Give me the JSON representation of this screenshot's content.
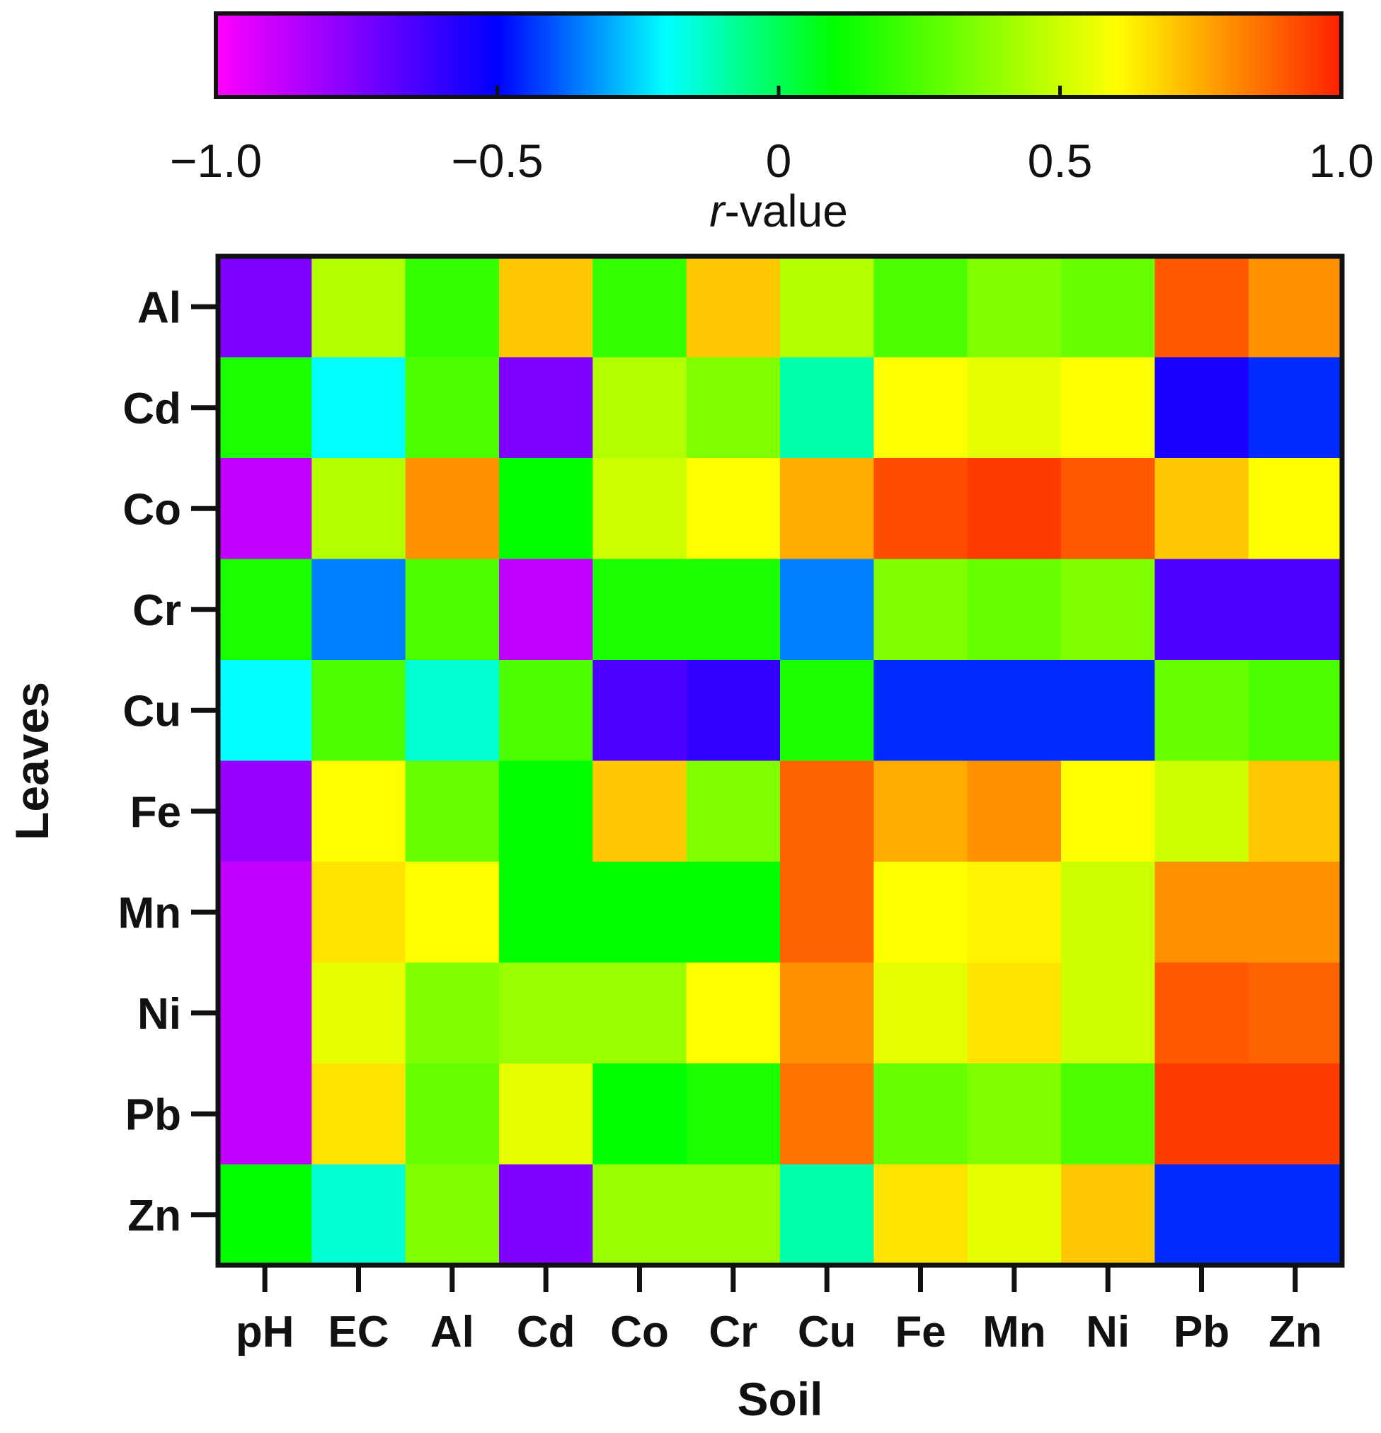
{
  "chart_data": {
    "type": "heatmap",
    "title": "",
    "xlabel": "Soil",
    "ylabel": "Leaves",
    "x_categories": [
      "pH",
      "EC",
      "Al",
      "Cd",
      "Co",
      "Cr",
      "Cu",
      "Fe",
      "Mn",
      "Ni",
      "Pb",
      "Zn"
    ],
    "y_categories": [
      "Al",
      "Cd",
      "Co",
      "Cr",
      "Cu",
      "Fe",
      "Mn",
      "Ni",
      "Pb",
      "Zn"
    ],
    "values": [
      [
        -0.75,
        0.45,
        0.2,
        0.7,
        0.2,
        0.7,
        0.45,
        0.25,
        0.35,
        0.3,
        0.9,
        0.8
      ],
      [
        0.15,
        -0.2,
        0.25,
        -0.75,
        0.45,
        0.35,
        -0.1,
        0.6,
        0.55,
        0.6,
        -0.55,
        -0.45
      ],
      [
        -0.88,
        0.45,
        0.8,
        0.1,
        0.5,
        0.6,
        0.75,
        0.92,
        0.95,
        0.9,
        0.7,
        0.6
      ],
      [
        0.15,
        -0.35,
        0.25,
        -0.88,
        0.15,
        0.15,
        -0.35,
        0.35,
        0.3,
        0.35,
        -0.65,
        -0.65
      ],
      [
        -0.2,
        0.25,
        -0.15,
        0.25,
        -0.65,
        -0.6,
        0.15,
        -0.45,
        -0.45,
        -0.45,
        0.3,
        0.25
      ],
      [
        -0.8,
        0.6,
        0.3,
        0.1,
        0.7,
        0.35,
        0.88,
        0.75,
        0.8,
        0.6,
        0.5,
        0.7
      ],
      [
        -0.88,
        0.65,
        0.6,
        0.1,
        0.1,
        0.1,
        0.88,
        0.6,
        0.62,
        0.5,
        0.8,
        0.8
      ],
      [
        -0.88,
        0.55,
        0.35,
        0.4,
        0.4,
        0.6,
        0.8,
        0.55,
        0.65,
        0.5,
        0.9,
        0.88
      ],
      [
        -0.88,
        0.65,
        0.3,
        0.55,
        0.1,
        0.15,
        0.85,
        0.3,
        0.35,
        0.25,
        0.95,
        0.95
      ],
      [
        0.1,
        -0.15,
        0.35,
        -0.75,
        0.4,
        0.4,
        -0.1,
        0.65,
        0.55,
        0.7,
        -0.45,
        -0.45
      ]
    ],
    "colorbar": {
      "label_italic": "r",
      "label_rest": "-value",
      "range": [
        -1.0,
        1.0
      ],
      "ticks": [
        -1.0,
        -0.5,
        0,
        0.5,
        1.0
      ],
      "tick_labels": [
        "−1.0",
        "−0.5",
        "0",
        "0.5",
        "1.0"
      ]
    },
    "colormap": [
      "#ff00ff",
      "#0000ff",
      "#00ffff",
      "#00ff00",
      "#ffff00",
      "#ff0000"
    ]
  }
}
